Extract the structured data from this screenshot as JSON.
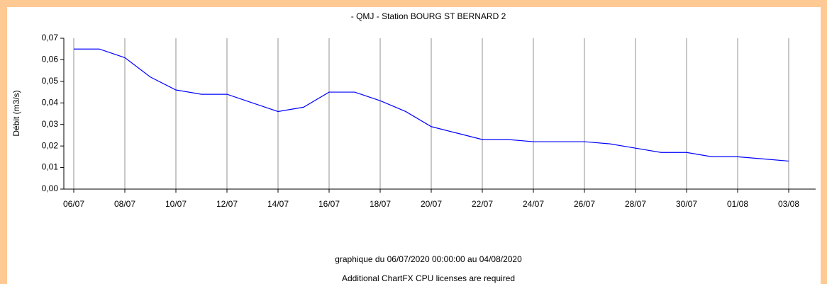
{
  "chart_data": {
    "type": "line",
    "title": "- QMJ - Station BOURG ST BERNARD 2",
    "y_label": "Débit (m3/s)",
    "footnotes": [
      "graphique du 06/07/2020 00:00:00 au 04/08/2020",
      "Additional ChartFX CPU licenses are required"
    ],
    "categories": [
      "06/07",
      null,
      "08/07",
      null,
      "10/07",
      null,
      "12/07",
      null,
      "14/07",
      null,
      "16/07",
      null,
      "18/07",
      null,
      "20/07",
      null,
      "22/07",
      null,
      "24/07",
      null,
      "26/07",
      null,
      "28/07",
      null,
      "30/07",
      null,
      "01/08",
      null,
      "03/08"
    ],
    "series": [
      {
        "name": "QMJ",
        "color": "#0000ff",
        "values": [
          0.065,
          0.065,
          0.061,
          0.052,
          0.046,
          0.044,
          0.044,
          0.04,
          0.036,
          0.038,
          0.045,
          0.045,
          0.041,
          0.036,
          0.029,
          0.026,
          0.023,
          0.023,
          0.022,
          0.022,
          0.022,
          0.021,
          0.019,
          0.017,
          0.017,
          0.015,
          0.015,
          0.014,
          0.013
        ]
      }
    ],
    "ylim": [
      0,
      0.07
    ],
    "yticks": [
      {
        "value": 0,
        "label": "0,00"
      },
      {
        "value": 0.01,
        "label": "0,01"
      },
      {
        "value": 0.02,
        "label": "0,02"
      },
      {
        "value": 0.03,
        "label": "0,03"
      },
      {
        "value": 0.04,
        "label": "0,04"
      },
      {
        "value": 0.05,
        "label": "0,05"
      },
      {
        "value": 0.06,
        "label": "0,06"
      },
      {
        "value": 0.07,
        "label": "0,07"
      }
    ],
    "grid": true
  }
}
